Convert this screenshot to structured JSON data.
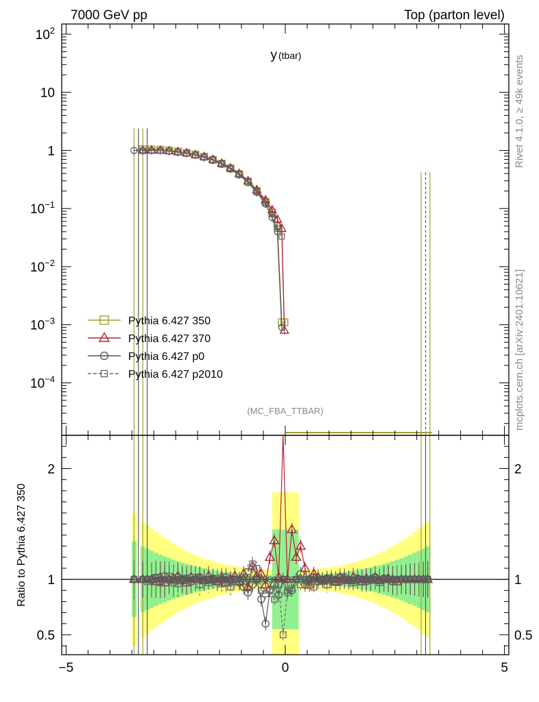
{
  "header": {
    "left": "7000 GeV pp",
    "right": "Top (parton level)"
  },
  "side_labels": {
    "rivet": "Rivet 4.1.0, ≥ 49k events",
    "mcplots": "mcplots.cern.ch [arXiv:2401.10621]"
  },
  "chart_data": {
    "type": "line",
    "title": "y (tbar)",
    "title_main": "y",
    "title_sub": "(tbar)",
    "analysis_label": "(MC_FBA_TTBAR)",
    "xlabel": "",
    "ylabel": "",
    "ratio_ylabel": "Ratio to Pythia 6.427 350",
    "xlim": [
      -5.1,
      5.1
    ],
    "ylim": [
      1.25e-05,
      150
    ],
    "yscale": "log",
    "ratio_ylim": [
      0.32,
      2.3
    ],
    "x_ticks": [
      -5,
      0,
      5
    ],
    "x_tick_labels": [
      "−5",
      "0",
      "5"
    ],
    "y_ticks": [
      0.0001,
      0.001,
      0.01,
      0.1,
      1,
      10,
      100
    ],
    "y_tick_labels": [
      {
        "base": "10",
        "exp": "−4"
      },
      {
        "base": "10",
        "exp": "−3"
      },
      {
        "base": "10",
        "exp": "−2"
      },
      {
        "base": "10",
        "exp": "−1"
      },
      {
        "base": "1",
        "exp": ""
      },
      {
        "base": "10",
        "exp": ""
      },
      {
        "base": "10",
        "exp": "2"
      }
    ],
    "ratio_y_ticks": [
      0.5,
      1,
      2
    ],
    "ratio_y_tick_labels": [
      "0.5",
      "1",
      "2"
    ],
    "legend_position": "lower-left",
    "series": [
      {
        "name": "Pythia 6.427 350",
        "color": "#a0a030",
        "marker": "square",
        "dash": "solid",
        "x": [
          -3.25,
          -3.05,
          -2.85,
          -2.65,
          -2.45,
          -2.25,
          -2.05,
          -1.85,
          -1.65,
          -1.45,
          -1.25,
          -1.05,
          -0.85,
          -0.65,
          -0.45,
          -0.3,
          -0.18,
          -0.08,
          -0.02
        ],
        "y": [
          1.05,
          1.04,
          1.03,
          1.0,
          0.96,
          0.91,
          0.85,
          0.78,
          0.69,
          0.59,
          0.49,
          0.39,
          0.29,
          0.2,
          0.13,
          0.085,
          0.05,
          0.0011,
          0.0011
        ]
      },
      {
        "name": "Pythia 6.427 370",
        "color": "#b0203a",
        "marker": "triangle",
        "dash": "solid",
        "x": [
          -3.25,
          -3.05,
          -2.85,
          -2.65,
          -2.45,
          -2.25,
          -2.05,
          -1.85,
          -1.65,
          -1.45,
          -1.25,
          -1.05,
          -0.85,
          -0.65,
          -0.45,
          -0.3,
          -0.18,
          -0.08,
          -0.02
        ],
        "y": [
          1.0,
          1.01,
          1.0,
          0.98,
          0.95,
          0.9,
          0.84,
          0.78,
          0.7,
          0.6,
          0.5,
          0.4,
          0.3,
          0.21,
          0.14,
          0.095,
          0.065,
          0.045,
          0.0008
        ]
      },
      {
        "name": "Pythia 6.427 p0",
        "color": "#555555",
        "marker": "circle",
        "dash": "solid",
        "x": [
          -3.45,
          -3.25,
          -3.05,
          -2.85,
          -2.65,
          -2.45,
          -2.25,
          -2.05,
          -1.85,
          -1.65,
          -1.45,
          -1.25,
          -1.05,
          -0.85,
          -0.65,
          -0.45,
          -0.3,
          -0.18,
          -0.08
        ],
        "y": [
          1.0,
          1.0,
          1.0,
          1.0,
          0.97,
          0.93,
          0.89,
          0.83,
          0.76,
          0.68,
          0.58,
          0.48,
          0.38,
          0.28,
          0.19,
          0.12,
          0.07,
          0.04,
          0.0009
        ]
      },
      {
        "name": "Pythia 6.427 p2010",
        "color": "#666666",
        "marker": "square-small",
        "dash": "dashed",
        "x": [
          -3.25,
          -3.05,
          -2.85,
          -2.65,
          -2.45,
          -2.25,
          -2.05,
          -1.85,
          -1.65,
          -1.45,
          -1.25,
          -1.05,
          -0.85,
          -0.65,
          -0.45,
          -0.3,
          -0.18,
          -0.08
        ],
        "y": [
          0.98,
          0.99,
          1.0,
          0.98,
          0.94,
          0.9,
          0.84,
          0.77,
          0.69,
          0.6,
          0.5,
          0.4,
          0.3,
          0.2,
          0.13,
          0.08,
          0.045,
          0.033
        ]
      }
    ],
    "spike_x": [
      -3.45,
      -3.35,
      -3.25,
      -3.15,
      3.1,
      3.2,
      3.3
    ],
    "ratio_series_x": [
      -3.45,
      -3.25,
      -3.15,
      -3.05,
      -2.95,
      -2.85,
      -2.75,
      -2.65,
      -2.55,
      -2.45,
      -2.35,
      -2.25,
      -2.15,
      -2.05,
      -1.95,
      -1.85,
      -1.75,
      -1.65,
      -1.55,
      -1.45,
      -1.35,
      -1.25,
      -1.15,
      -1.05,
      -0.95,
      -0.85,
      -0.75,
      -0.65,
      -0.55,
      -0.45,
      -0.35,
      -0.25,
      -0.15,
      -0.05,
      0.05,
      0.15,
      0.25,
      0.35,
      0.45,
      0.55,
      0.65,
      0.75,
      0.85,
      0.95,
      1.05,
      1.15,
      1.25,
      1.35,
      1.45,
      1.55,
      1.65,
      1.75,
      1.85,
      1.95,
      2.05,
      2.15,
      2.25,
      2.35,
      2.45,
      2.55,
      2.65,
      2.75,
      2.85,
      2.95,
      3.05,
      3.15,
      3.25
    ],
    "ratio_values": {
      "370": [
        1.0,
        1.0,
        1.0,
        1.0,
        0.98,
        1.02,
        0.97,
        1.0,
        1.01,
        1.03,
        0.99,
        0.97,
        1.02,
        1.0,
        1.01,
        0.99,
        1.03,
        1.0,
        0.98,
        1.02,
        0.97,
        1.0,
        1.03,
        0.98,
        1.05,
        0.93,
        1.12,
        1.03,
        1.05,
        0.95,
        1.2,
        1.35,
        1.02,
        2.5,
        1.0,
        1.45,
        1.2,
        1.3,
        1.1,
        0.95,
        1.05,
        1.02,
        0.99,
        1.0,
        1.01,
        0.98,
        1.02,
        1.0,
        0.99,
        1.02,
        1.0,
        0.98,
        1.01,
        1.0,
        1.02,
        0.99,
        1.0,
        1.01,
        1.0,
        0.98,
        1.0,
        1.0,
        1.0,
        1.0,
        1.0,
        1.0,
        1.0
      ],
      "p0": [
        1.0,
        1.0,
        1.0,
        0.99,
        1.01,
        0.98,
        1.03,
        1.0,
        0.97,
        1.02,
        1.0,
        1.01,
        0.98,
        1.0,
        1.02,
        0.99,
        1.0,
        1.01,
        0.98,
        1.0,
        1.02,
        0.99,
        1.0,
        0.97,
        0.93,
        0.88,
        0.95,
        1.0,
        0.82,
        0.6,
        0.9,
        0.95,
        0.86,
        1.0,
        0.88,
        0.9,
        1.0,
        1.05,
        0.95,
        1.0,
        1.02,
        0.98,
        1.0,
        1.01,
        0.99,
        1.0,
        0.98,
        1.02,
        1.0,
        0.99,
        1.01,
        1.0,
        0.98,
        1.0,
        1.02,
        0.99,
        1.01,
        1.0,
        0.98,
        1.0,
        1.0,
        1.0,
        1.0,
        1.0,
        1.0,
        1.0,
        1.0
      ],
      "p2010": [
        1.0,
        1.0,
        0.98,
        1.0,
        1.02,
        0.97,
        1.0,
        1.03,
        0.99,
        0.96,
        1.01,
        1.0,
        0.98,
        1.02,
        0.95,
        1.0,
        0.97,
        0.99,
        1.01,
        0.96,
        1.0,
        0.93,
        0.98,
        1.0,
        1.02,
        1.07,
        1.14,
        1.1,
        0.9,
        0.87,
        0.91,
        0.82,
        0.95,
        0.5,
        0.9,
        0.92,
        1.0,
        0.95,
        1.0,
        0.97,
        0.93,
        1.0,
        0.98,
        0.95,
        1.0,
        0.97,
        1.02,
        0.99,
        1.0,
        0.97,
        1.0,
        0.98,
        1.0,
        0.99,
        1.0,
        0.97,
        1.0,
        1.0,
        0.98,
        1.0,
        1.0,
        1.0,
        1.0,
        1.0,
        1.0,
        1.0,
        1.0
      ]
    },
    "band_colors": {
      "inner": "#90f090",
      "outer": "#ffff80"
    }
  }
}
